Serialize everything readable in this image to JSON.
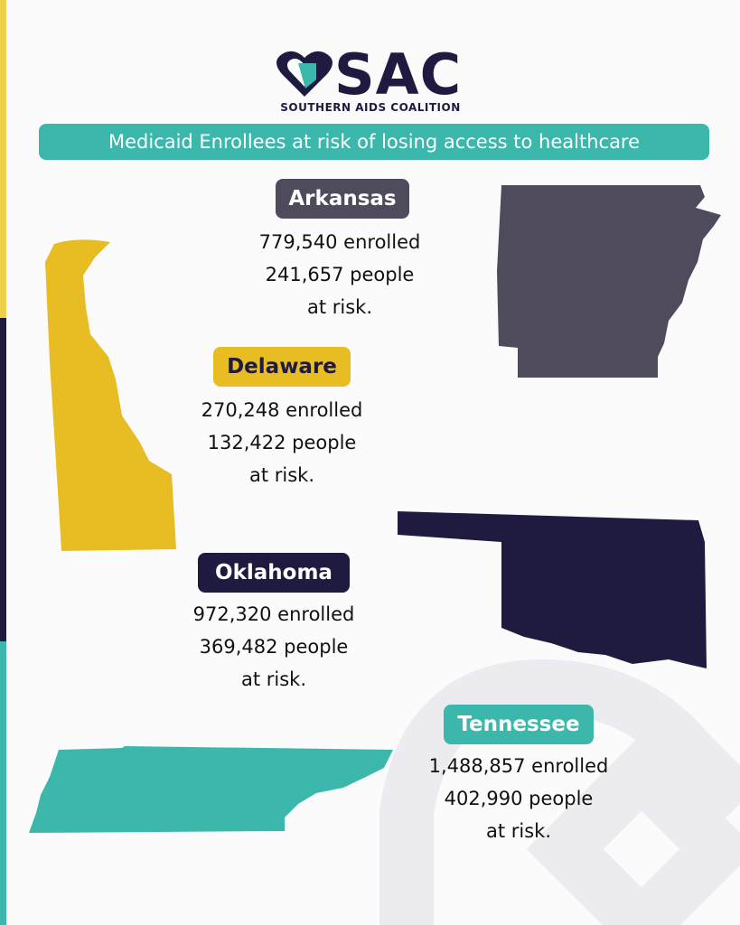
{
  "logo": {
    "mark": "SAC",
    "name": "SOUTHERN AIDS COALITION"
  },
  "title": "Medicaid Enrollees at risk of losing access to healthcare",
  "states": [
    {
      "name": "Arkansas",
      "lines": [
        "779,540 enrolled",
        "241,657 people",
        "at risk."
      ]
    },
    {
      "name": "Delaware",
      "lines": [
        "270,248 enrolled",
        "132,422 people",
        "at risk."
      ]
    },
    {
      "name": "Oklahoma",
      "lines": [
        "972,320 enrolled",
        "369,482 people",
        "at risk."
      ]
    },
    {
      "name": "Tennessee",
      "lines": [
        "1,488,857 enrolled",
        "402,990 people",
        "at risk."
      ]
    }
  ]
}
